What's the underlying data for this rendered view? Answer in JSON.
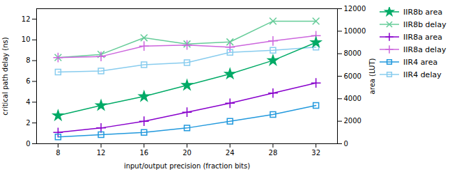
{
  "chart_data": {
    "type": "line",
    "xlabel": "input/output precision (fraction bits)",
    "ylabel": "critical path delay (ns)",
    "y2label": "area (LUT)",
    "x": [
      8,
      12,
      16,
      20,
      24,
      28,
      32
    ],
    "xlim": [
      6,
      34
    ],
    "xticks": [
      8,
      12,
      16,
      20,
      24,
      28,
      32
    ],
    "ylim": [
      0,
      13
    ],
    "yticks": [
      0,
      2,
      4,
      6,
      8,
      10,
      12
    ],
    "y2lim": [
      0,
      12000
    ],
    "y2ticks": [
      0,
      2000,
      4000,
      6000,
      8000,
      10000,
      12000
    ],
    "grid": false,
    "legend": "right",
    "series": [
      {
        "name": "IIR8b area",
        "color": "#00aa66",
        "marker": "star",
        "axis": "y2",
        "values": [
          2500,
          3400,
          4200,
          5200,
          6200,
          7400,
          9000
        ]
      },
      {
        "name": "IIR8b delay",
        "color": "#66cc99",
        "marker": "times",
        "values": [
          8.3,
          8.6,
          10.2,
          9.6,
          9.8,
          11.8,
          11.8
        ]
      },
      {
        "name": "IIR8a area",
        "color": "#8800cc",
        "marker": "plus",
        "axis": "y2",
        "values": [
          1000,
          1400,
          2000,
          2800,
          3600,
          4500,
          5400
        ]
      },
      {
        "name": "IIR8a delay",
        "color": "#cc66dd",
        "marker": "plus",
        "values": [
          8.3,
          8.4,
          9.4,
          9.5,
          9.3,
          9.9,
          10.4
        ]
      },
      {
        "name": "IIR4 area",
        "color": "#2299dd",
        "marker": "square",
        "axis": "y2",
        "values": [
          600,
          800,
          1000,
          1400,
          2000,
          2600,
          3400
        ]
      },
      {
        "name": "IIR4 delay",
        "color": "#88ccee",
        "marker": "square",
        "values": [
          6.9,
          7.0,
          7.6,
          7.8,
          8.8,
          9.0,
          9.3
        ]
      }
    ]
  }
}
